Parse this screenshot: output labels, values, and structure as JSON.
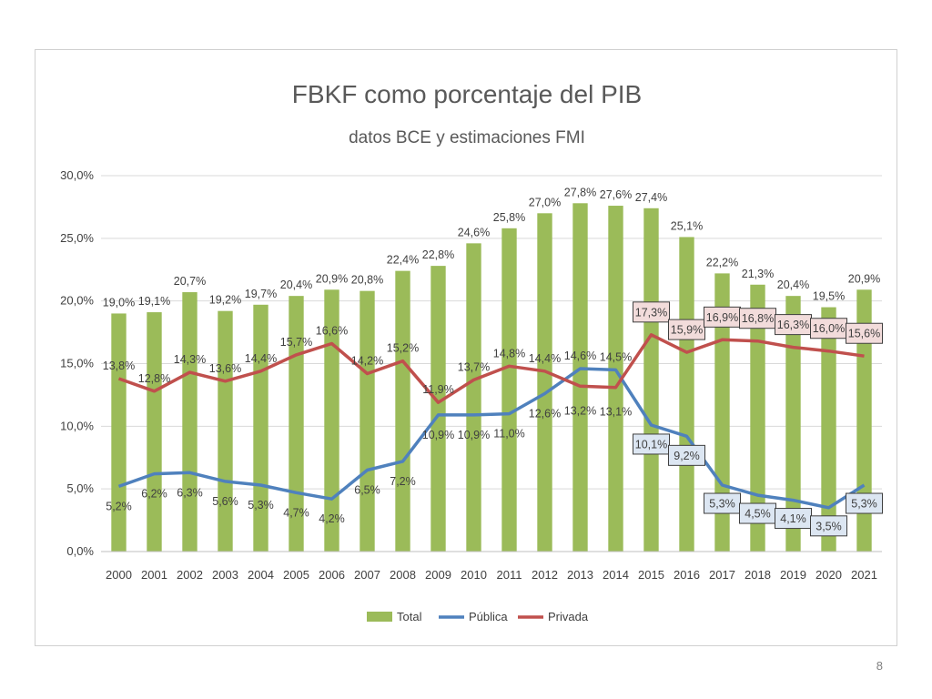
{
  "slide": {
    "number": "8"
  },
  "colors": {
    "total": "#9BBB59",
    "publica": "#4F81BD",
    "privada": "#C0504D",
    "box_red_fill": "#F2DCDB",
    "box_blue_fill": "#DCE6F2",
    "box_border": "#404040"
  },
  "chart_data": {
    "type": "bar",
    "title": "FBKF como porcentaje del PIB",
    "subtitle": "datos BCE y estimaciones FMI",
    "xlabel": "",
    "ylabel": "",
    "ylim": [
      0,
      30
    ],
    "yticks": [
      "0,0%",
      "5,0%",
      "10,0%",
      "15,0%",
      "20,0%",
      "25,0%",
      "30,0%"
    ],
    "grid": true,
    "legend_position": "bottom",
    "categories": [
      "2000",
      "2001",
      "2002",
      "2003",
      "2004",
      "2005",
      "2006",
      "2007",
      "2008",
      "2009",
      "2010",
      "2011",
      "2012",
      "2013",
      "2014",
      "2015",
      "2016",
      "2017",
      "2018",
      "2019",
      "2020",
      "2021"
    ],
    "series": [
      {
        "name": "Total",
        "kind": "bar",
        "values": [
          19.0,
          19.1,
          20.7,
          19.2,
          19.7,
          20.4,
          20.9,
          20.8,
          22.4,
          22.8,
          24.6,
          25.8,
          27.0,
          27.8,
          27.6,
          27.4,
          25.1,
          22.2,
          21.3,
          20.4,
          19.5,
          20.9
        ],
        "labels": [
          "19,0%",
          "19,1%",
          "20,7%",
          "19,2%",
          "19,7%",
          "20,4%",
          "20,9%",
          "20,8%",
          "22,4%",
          "22,8%",
          "24,6%",
          "25,8%",
          "27,0%",
          "27,8%",
          "27,6%",
          "27,4%",
          "25,1%",
          "22,2%",
          "21,3%",
          "20,4%",
          "19,5%",
          "20,9%"
        ]
      },
      {
        "name": "Pública",
        "kind": "line",
        "values": [
          5.2,
          6.2,
          6.3,
          5.6,
          5.3,
          4.7,
          4.2,
          6.5,
          7.2,
          10.9,
          10.9,
          11.0,
          12.6,
          14.6,
          14.5,
          10.1,
          9.2,
          5.3,
          4.5,
          4.1,
          3.5,
          5.3
        ],
        "labels": [
          "5,2%",
          "6,2%",
          "6,3%",
          "5,6%",
          "5,3%",
          "4,7%",
          "4,2%",
          "6,5%",
          "7,2%",
          "10,9%",
          "10,9%",
          "11,0%",
          "12,6%",
          "14,6%",
          "14,5%",
          "10,1%",
          "9,2%",
          "5,3%",
          "4,5%",
          "4,1%",
          "3,5%",
          "5,3%"
        ]
      },
      {
        "name": "Privada",
        "kind": "line",
        "values": [
          13.8,
          12.8,
          14.3,
          13.6,
          14.4,
          15.7,
          16.6,
          14.2,
          15.2,
          11.9,
          13.7,
          14.8,
          14.4,
          13.2,
          13.1,
          17.3,
          15.9,
          16.9,
          16.8,
          16.3,
          16.0,
          15.6
        ],
        "labels": [
          "13,8%",
          "12,8%",
          "14,3%",
          "13,6%",
          "14,4%",
          "15,7%",
          "16,6%",
          "14,2%",
          "15,2%",
          "11,9%",
          "13,7%",
          "14,8%",
          "14,4%",
          "13,2%",
          "13,1%",
          "17,3%",
          "15,9%",
          "16,9%",
          "16,8%",
          "16,3%",
          "16,0%",
          "15,6%"
        ]
      }
    ]
  }
}
